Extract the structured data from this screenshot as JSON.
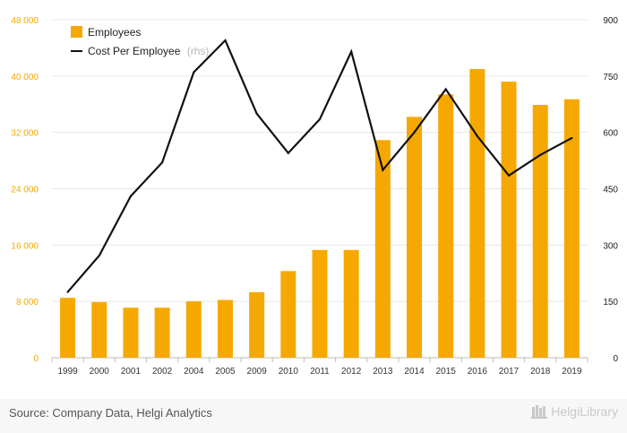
{
  "chart_data": {
    "type": "bar+line",
    "categories": [
      "1999",
      "2000",
      "2001",
      "2002",
      "2004",
      "2005",
      "2009",
      "2010",
      "2011",
      "2012",
      "2013",
      "2014",
      "2015",
      "2016",
      "2017",
      "2018",
      "2019"
    ],
    "series": [
      {
        "name": "Employees",
        "type": "bar",
        "axis": "left",
        "color": "#f5a800",
        "values": [
          8500,
          7900,
          7100,
          7100,
          8000,
          8200,
          9300,
          12300,
          15300,
          15300,
          30900,
          34200,
          37400,
          41000,
          39200,
          35900,
          36700
        ]
      },
      {
        "name": "Cost Per Employee",
        "type": "line",
        "axis": "right",
        "color": "#111111",
        "values": [
          175,
          272,
          430,
          520,
          760,
          845,
          650,
          545,
          635,
          815,
          500,
          600,
          715,
          590,
          485,
          540,
          585
        ]
      }
    ],
    "y_left": {
      "min": 0,
      "max": 48000,
      "ticks": [
        "0",
        "8 000",
        "16 000",
        "24 000",
        "32 000",
        "40 000",
        "48 000"
      ]
    },
    "y_right": {
      "min": 0,
      "max": 900,
      "ticks": [
        "0",
        "150",
        "300",
        "450",
        "600",
        "750",
        "900"
      ]
    },
    "legend": [
      {
        "label": "Employees",
        "suffix": ""
      },
      {
        "label": "Cost Per Employee",
        "suffix": "(rhs)"
      }
    ],
    "legend_position": "top-left",
    "grid": true
  },
  "colors": {
    "accent": "#f5a800",
    "line": "#111111",
    "grid": "#e6e6e6"
  },
  "footer": {
    "source": "Source: Company Data, Helgi Analytics",
    "brand": "HelgiLibrary",
    "brand_icon": "library-logo-icon"
  }
}
